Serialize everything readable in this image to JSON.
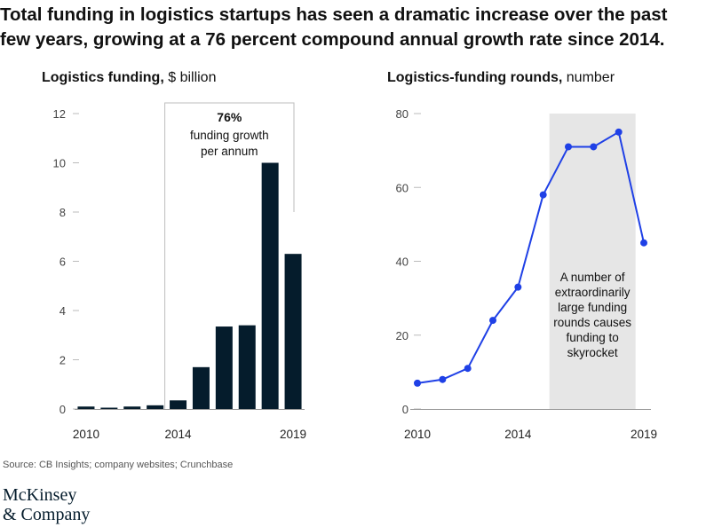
{
  "headline": {
    "line1": "Total funding in logistics startups has seen a dramatic increase over the past",
    "line2": "few years, growing at a 76 percent compound annual growth rate since 2014."
  },
  "source": "Source: CB Insights; company websites; Crunchbase",
  "logo": {
    "line1": "McKinsey",
    "line2": "& Company"
  },
  "chart_data": [
    {
      "type": "bar",
      "title": "Logistics funding,",
      "unit": "$ billion",
      "x": [
        2010,
        2011,
        2012,
        2013,
        2014,
        2015,
        2016,
        2017,
        2018,
        2019
      ],
      "values": [
        0.1,
        0.05,
        0.1,
        0.15,
        0.35,
        1.7,
        3.35,
        3.4,
        10.0,
        6.3
      ],
      "yticks": [
        0,
        2,
        4,
        6,
        8,
        10,
        12
      ],
      "xtick_labels": [
        "2010",
        "2014",
        "2019"
      ],
      "ylim": [
        0,
        12
      ],
      "bar_color": "#051c2c",
      "annotation": {
        "value": "76%",
        "line1": "funding growth",
        "line2": "per annum"
      }
    },
    {
      "type": "line",
      "title": "Logistics-funding rounds,",
      "unit": "number",
      "x": [
        2010,
        2011,
        2012,
        2013,
        2014,
        2015,
        2016,
        2017,
        2018,
        2019
      ],
      "values": [
        7,
        8,
        11,
        24,
        33,
        58,
        71,
        71,
        75,
        45
      ],
      "yticks": [
        0,
        20,
        40,
        60,
        80
      ],
      "xtick_labels": [
        "2010",
        "2014",
        "2019"
      ],
      "ylim": [
        0,
        80
      ],
      "line_color": "#1f40e6",
      "shade_color": "#e6e6e6",
      "annotation": {
        "lines": [
          "A number of",
          "extraordinarily",
          "large funding",
          "rounds causes",
          "funding to",
          "skyrocket"
        ]
      }
    }
  ]
}
